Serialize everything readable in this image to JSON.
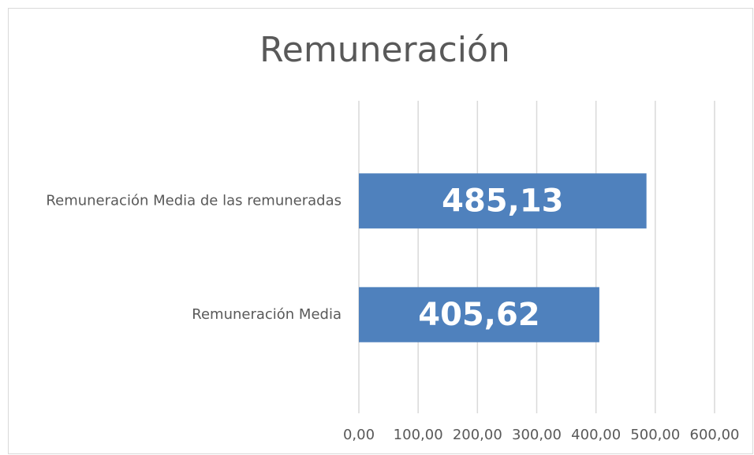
{
  "chart_data": {
    "type": "hbar",
    "title": "Remuneración",
    "categories": [
      "Remuneración Media de las remuneradas",
      "Remuneración Media"
    ],
    "values": [
      485.13,
      405.62
    ],
    "value_labels": [
      "485,13",
      "405,62"
    ],
    "color": "#4f81bd",
    "xlim": [
      0,
      600
    ],
    "xticks": [
      {
        "value": 0,
        "label": "0,00"
      },
      {
        "value": 100,
        "label": "100,00"
      },
      {
        "value": 200,
        "label": "200,00"
      },
      {
        "value": 300,
        "label": "300,00"
      },
      {
        "value": 400,
        "label": "400,00"
      },
      {
        "value": 500,
        "label": "500,00"
      },
      {
        "value": 600,
        "label": "600,00"
      }
    ],
    "grid": true
  }
}
